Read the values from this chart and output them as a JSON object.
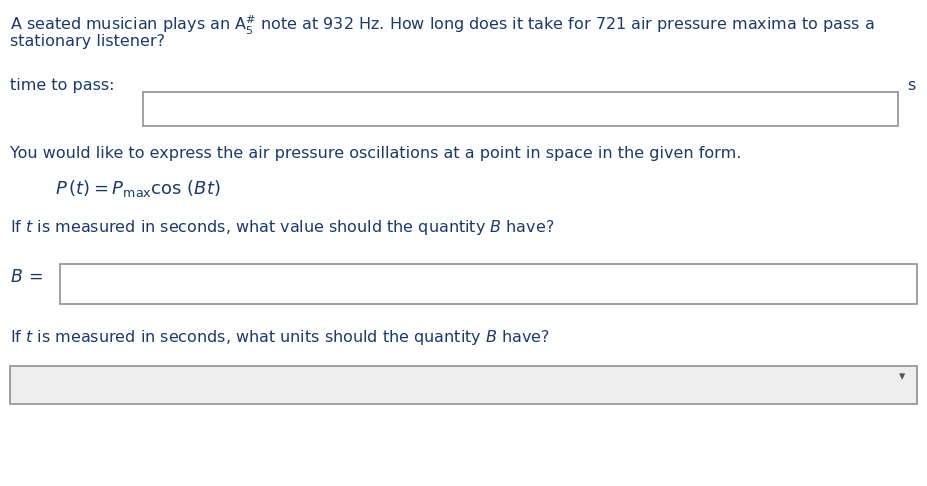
{
  "bg_color": "#ffffff",
  "dark_blue": "#1a3a6b",
  "box_color": "#ffffff",
  "box_edge": "#909090",
  "dropdown_bg": "#eeeeee",
  "figsize": [
    9.27,
    4.86
  ],
  "dpi": 100,
  "line1_part1": "A seated musician plays an A",
  "line1_part2": " note at 932 Hz. How long does it take for 721 air pressure maxima to pass a",
  "line2": "stationary listener?",
  "label_time": "time to pass:",
  "unit_s": "s",
  "text_form": "You would like to express the air pressure oscillations at a point in space in the given form.",
  "formula": "$P\\,(t) = P_{\\mathrm{max}}\\cos\\,(Bt)$",
  "q1_full": "If $t$ is measured in seconds, what value should the quantity $B$ have?",
  "label_B": "$B\\,=$",
  "q2_full": "If $t$ is measured in seconds, what units should the quantity $B$ have?",
  "fs_main": 11.5,
  "fs_formula": 13
}
